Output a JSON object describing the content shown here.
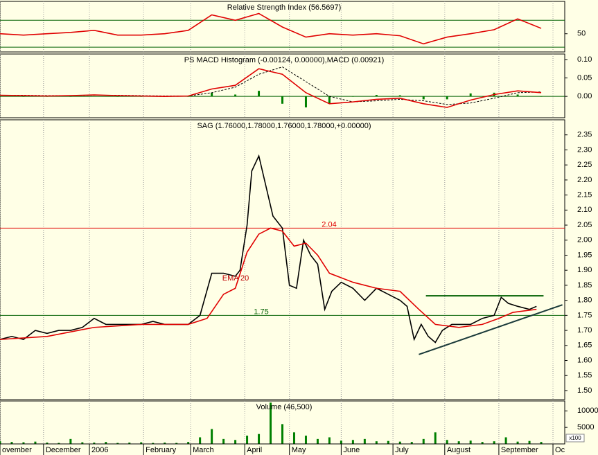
{
  "chart_data": [
    {
      "type": "line",
      "title": "Relative Strength Index (56.5697)",
      "ylim": [
        23,
        98
      ],
      "yticks": [
        50
      ],
      "levels": [
        30,
        70
      ],
      "level_color": "#006000",
      "series": [
        {
          "color": "#e00000",
          "style": "line",
          "x": [
            0,
            10,
            20,
            30,
            40,
            50,
            60,
            70,
            80,
            90,
            100,
            110,
            120,
            130,
            140,
            150,
            160,
            170,
            180,
            190,
            200,
            210,
            220,
            230
          ],
          "values": [
            50,
            48,
            50,
            52,
            55,
            48,
            48,
            50,
            55,
            78,
            70,
            80,
            60,
            45,
            50,
            48,
            50,
            47,
            35,
            45,
            50,
            56,
            72,
            58
          ]
        }
      ]
    },
    {
      "type": "line",
      "title": "PS MACD Histogram (-0.00124, 0.00000),MACD (0.00921)",
      "ylim": [
        -0.058,
        0.115
      ],
      "yticks": [
        {
          "value": 0.1,
          "label": "0.10"
        },
        0.05,
        {
          "value": 0,
          "label": "0.00"
        }
      ],
      "levels": [
        0
      ],
      "level_color": "#006000",
      "series": [
        {
          "color": "#008000",
          "style": "bar",
          "x": [
            0,
            10,
            20,
            30,
            40,
            50,
            60,
            70,
            80,
            90,
            100,
            110,
            120,
            130,
            140,
            150,
            160,
            170,
            180,
            190,
            200,
            210,
            220,
            230
          ],
          "values": [
            0,
            -0.001,
            -0.001,
            0,
            0.001,
            -0.001,
            -0.001,
            -0.001,
            0,
            0.01,
            0.005,
            0.015,
            -0.02,
            -0.03,
            -0.02,
            0,
            0.004,
            0.003,
            -0.008,
            -0.008,
            0.008,
            0.01,
            0.005,
            -0.001
          ]
        },
        {
          "color": "#000000",
          "style": "dashed",
          "x": [
            0,
            10,
            20,
            30,
            40,
            50,
            60,
            70,
            80,
            90,
            100,
            110,
            120,
            130,
            140,
            150,
            160,
            170,
            180,
            190,
            200,
            210,
            220,
            230
          ],
          "values": [
            0.003,
            0.003,
            0.002,
            0.002,
            0.003,
            0.003,
            0.002,
            0.001,
            0.001,
            0.01,
            0.025,
            0.06,
            0.08,
            0.04,
            0,
            -0.015,
            -0.012,
            -0.008,
            -0.012,
            -0.022,
            -0.018,
            -0.005,
            0.01,
            0.012
          ]
        },
        {
          "color": "#e00000",
          "style": "line",
          "x": [
            0,
            10,
            20,
            30,
            40,
            50,
            60,
            70,
            80,
            90,
            100,
            110,
            120,
            130,
            140,
            150,
            160,
            170,
            180,
            190,
            200,
            210,
            220,
            230
          ],
          "values": [
            0.003,
            0.002,
            0.001,
            0.002,
            0.004,
            0.002,
            0.001,
            0,
            0.001,
            0.02,
            0.03,
            0.075,
            0.06,
            0.01,
            -0.02,
            -0.015,
            -0.008,
            -0.005,
            -0.02,
            -0.03,
            -0.01,
            0.005,
            0.015,
            0.01
          ]
        }
      ]
    },
    {
      "type": "line",
      "title": "SAG (1.76000,1.78000,1.76000,1.78000,+0.00000)",
      "ylim": [
        1.47,
        2.4
      ],
      "yticks": [
        {
          "value": 1.5,
          "label": "1.50"
        },
        1.55,
        {
          "value": 1.6,
          "label": "1.60"
        },
        1.65,
        {
          "value": 1.7,
          "label": "1.70"
        },
        1.75,
        {
          "value": 1.8,
          "label": "1.80"
        },
        1.85,
        {
          "value": 1.9,
          "label": "1.90"
        },
        1.95,
        {
          "value": 2,
          "label": "2.00"
        },
        2.05,
        {
          "value": 2.1,
          "label": "2.10"
        },
        2.15,
        {
          "value": 2.2,
          "label": "2.20"
        },
        2.25,
        {
          "value": 2.3,
          "label": "2.30"
        },
        2.35
      ],
      "hlines": [
        {
          "value": 2.04,
          "color": "#e00000"
        },
        {
          "value": 1.75,
          "color": "#006000"
        }
      ],
      "annotations": [
        "EMA 20"
      ],
      "trendlines": [
        {
          "color": "#006000",
          "x": [
            181,
            231
          ],
          "values": [
            1.815,
            1.815
          ]
        },
        {
          "color": "#1a3a3a",
          "x": [
            178,
            239
          ],
          "values": [
            1.62,
            1.785
          ]
        }
      ],
      "series": [
        {
          "color": "#000000",
          "style": "line",
          "x": [
            0,
            5,
            10,
            15,
            20,
            25,
            30,
            35,
            40,
            45,
            50,
            55,
            60,
            65,
            70,
            75,
            80,
            85,
            90,
            95,
            100,
            102,
            105,
            107,
            110,
            113,
            116,
            120,
            123,
            126,
            129,
            132,
            135,
            138,
            141,
            145,
            150,
            155,
            160,
            165,
            170,
            173,
            176,
            179,
            182,
            185,
            188,
            192,
            196,
            200,
            205,
            210,
            213,
            216,
            220,
            225,
            228
          ],
          "values": [
            1.67,
            1.68,
            1.67,
            1.7,
            1.69,
            1.7,
            1.7,
            1.71,
            1.74,
            1.72,
            1.72,
            1.72,
            1.72,
            1.73,
            1.72,
            1.72,
            1.72,
            1.75,
            1.89,
            1.89,
            1.88,
            1.9,
            2.05,
            2.23,
            2.28,
            2.18,
            2.08,
            2.04,
            1.85,
            1.84,
            2.0,
            1.95,
            1.92,
            1.77,
            1.83,
            1.86,
            1.84,
            1.8,
            1.84,
            1.82,
            1.8,
            1.78,
            1.67,
            1.72,
            1.68,
            1.66,
            1.7,
            1.72,
            1.72,
            1.72,
            1.74,
            1.75,
            1.81,
            1.79,
            1.78,
            1.77,
            1.78
          ]
        },
        {
          "color": "#e00000",
          "style": "line",
          "x": [
            0,
            20,
            40,
            60,
            80,
            88,
            95,
            100,
            105,
            110,
            115,
            120,
            125,
            130,
            135,
            140,
            150,
            160,
            170,
            178,
            185,
            195,
            205,
            212,
            218,
            228
          ],
          "values": [
            1.67,
            1.68,
            1.71,
            1.72,
            1.72,
            1.74,
            1.82,
            1.84,
            1.96,
            2.02,
            2.04,
            2.03,
            1.98,
            1.99,
            1.95,
            1.89,
            1.86,
            1.84,
            1.83,
            1.77,
            1.72,
            1.71,
            1.72,
            1.74,
            1.76,
            1.77
          ]
        }
      ]
    },
    {
      "type": "bar",
      "title": "Volume (46,500)",
      "y_unit": "x100",
      "ylim": [
        0,
        13000
      ],
      "yticks": [
        5000,
        10000
      ],
      "xlim": [
        0,
        240
      ],
      "xticks": [
        {
          "value": 0,
          "label": "ovember"
        },
        {
          "value": 18.5,
          "label": "December"
        },
        {
          "value": 38,
          "label": "2006"
        },
        {
          "value": 61,
          "label": "February"
        },
        {
          "value": 81,
          "label": "March"
        },
        {
          "value": 104,
          "label": "April"
        },
        {
          "value": 123,
          "label": "May"
        },
        {
          "value": 145,
          "label": "June"
        },
        {
          "value": 167,
          "label": "July"
        },
        {
          "value": 189,
          "label": "August"
        },
        {
          "value": 212,
          "label": "September"
        },
        {
          "value": 235,
          "label": "Oc"
        }
      ],
      "series": [
        {
          "color": "#008000",
          "style": "bar",
          "x": [
            0,
            5,
            10,
            15,
            20,
            25,
            30,
            35,
            40,
            45,
            50,
            55,
            60,
            65,
            70,
            75,
            80,
            85,
            90,
            95,
            100,
            105,
            110,
            115,
            120,
            125,
            130,
            135,
            140,
            145,
            150,
            155,
            160,
            165,
            170,
            175,
            180,
            185,
            190,
            195,
            200,
            205,
            210,
            215,
            220,
            225,
            230
          ],
          "values": [
            800,
            600,
            500,
            700,
            400,
            300,
            1500,
            500,
            400,
            600,
            300,
            400,
            500,
            300,
            400,
            300,
            600,
            2000,
            4500,
            1500,
            1200,
            2500,
            3000,
            12500,
            6000,
            3500,
            2500,
            1500,
            2000,
            1000,
            1200,
            1500,
            800,
            900,
            700,
            600,
            1500,
            3500,
            1200,
            800,
            1000,
            600,
            800,
            2000,
            700,
            900,
            600
          ]
        }
      ]
    }
  ]
}
